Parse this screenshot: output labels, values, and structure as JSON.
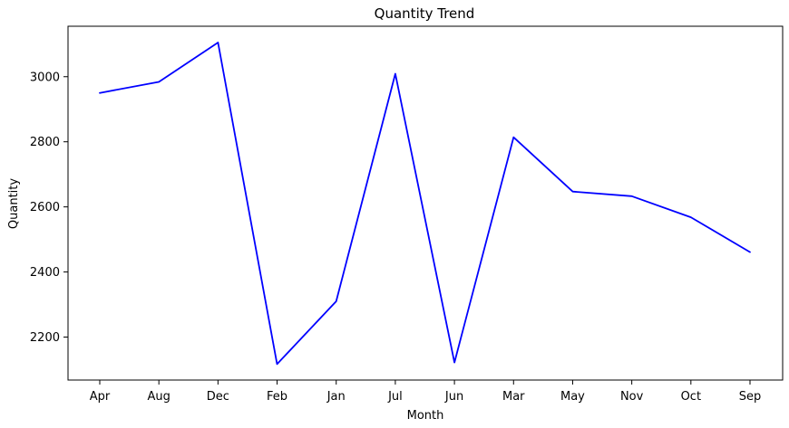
{
  "chart_data": {
    "type": "line",
    "title": "Quantity Trend",
    "xlabel": "Month",
    "ylabel": "Quantity",
    "categories": [
      "Apr",
      "Aug",
      "Dec",
      "Feb",
      "Jan",
      "Jul",
      "Jun",
      "Mar",
      "May",
      "Nov",
      "Oct",
      "Sep"
    ],
    "series": [
      {
        "color": "#0000ff",
        "values": [
          2950,
          2984,
          3105,
          2117,
          2310,
          3009,
          2122,
          2814,
          2647,
          2633,
          2568,
          2461
        ]
      }
    ],
    "yticks": [
      2200,
      2400,
      2600,
      2800,
      3000
    ],
    "ylim": [
      2068,
      3155
    ],
    "grid": false
  }
}
